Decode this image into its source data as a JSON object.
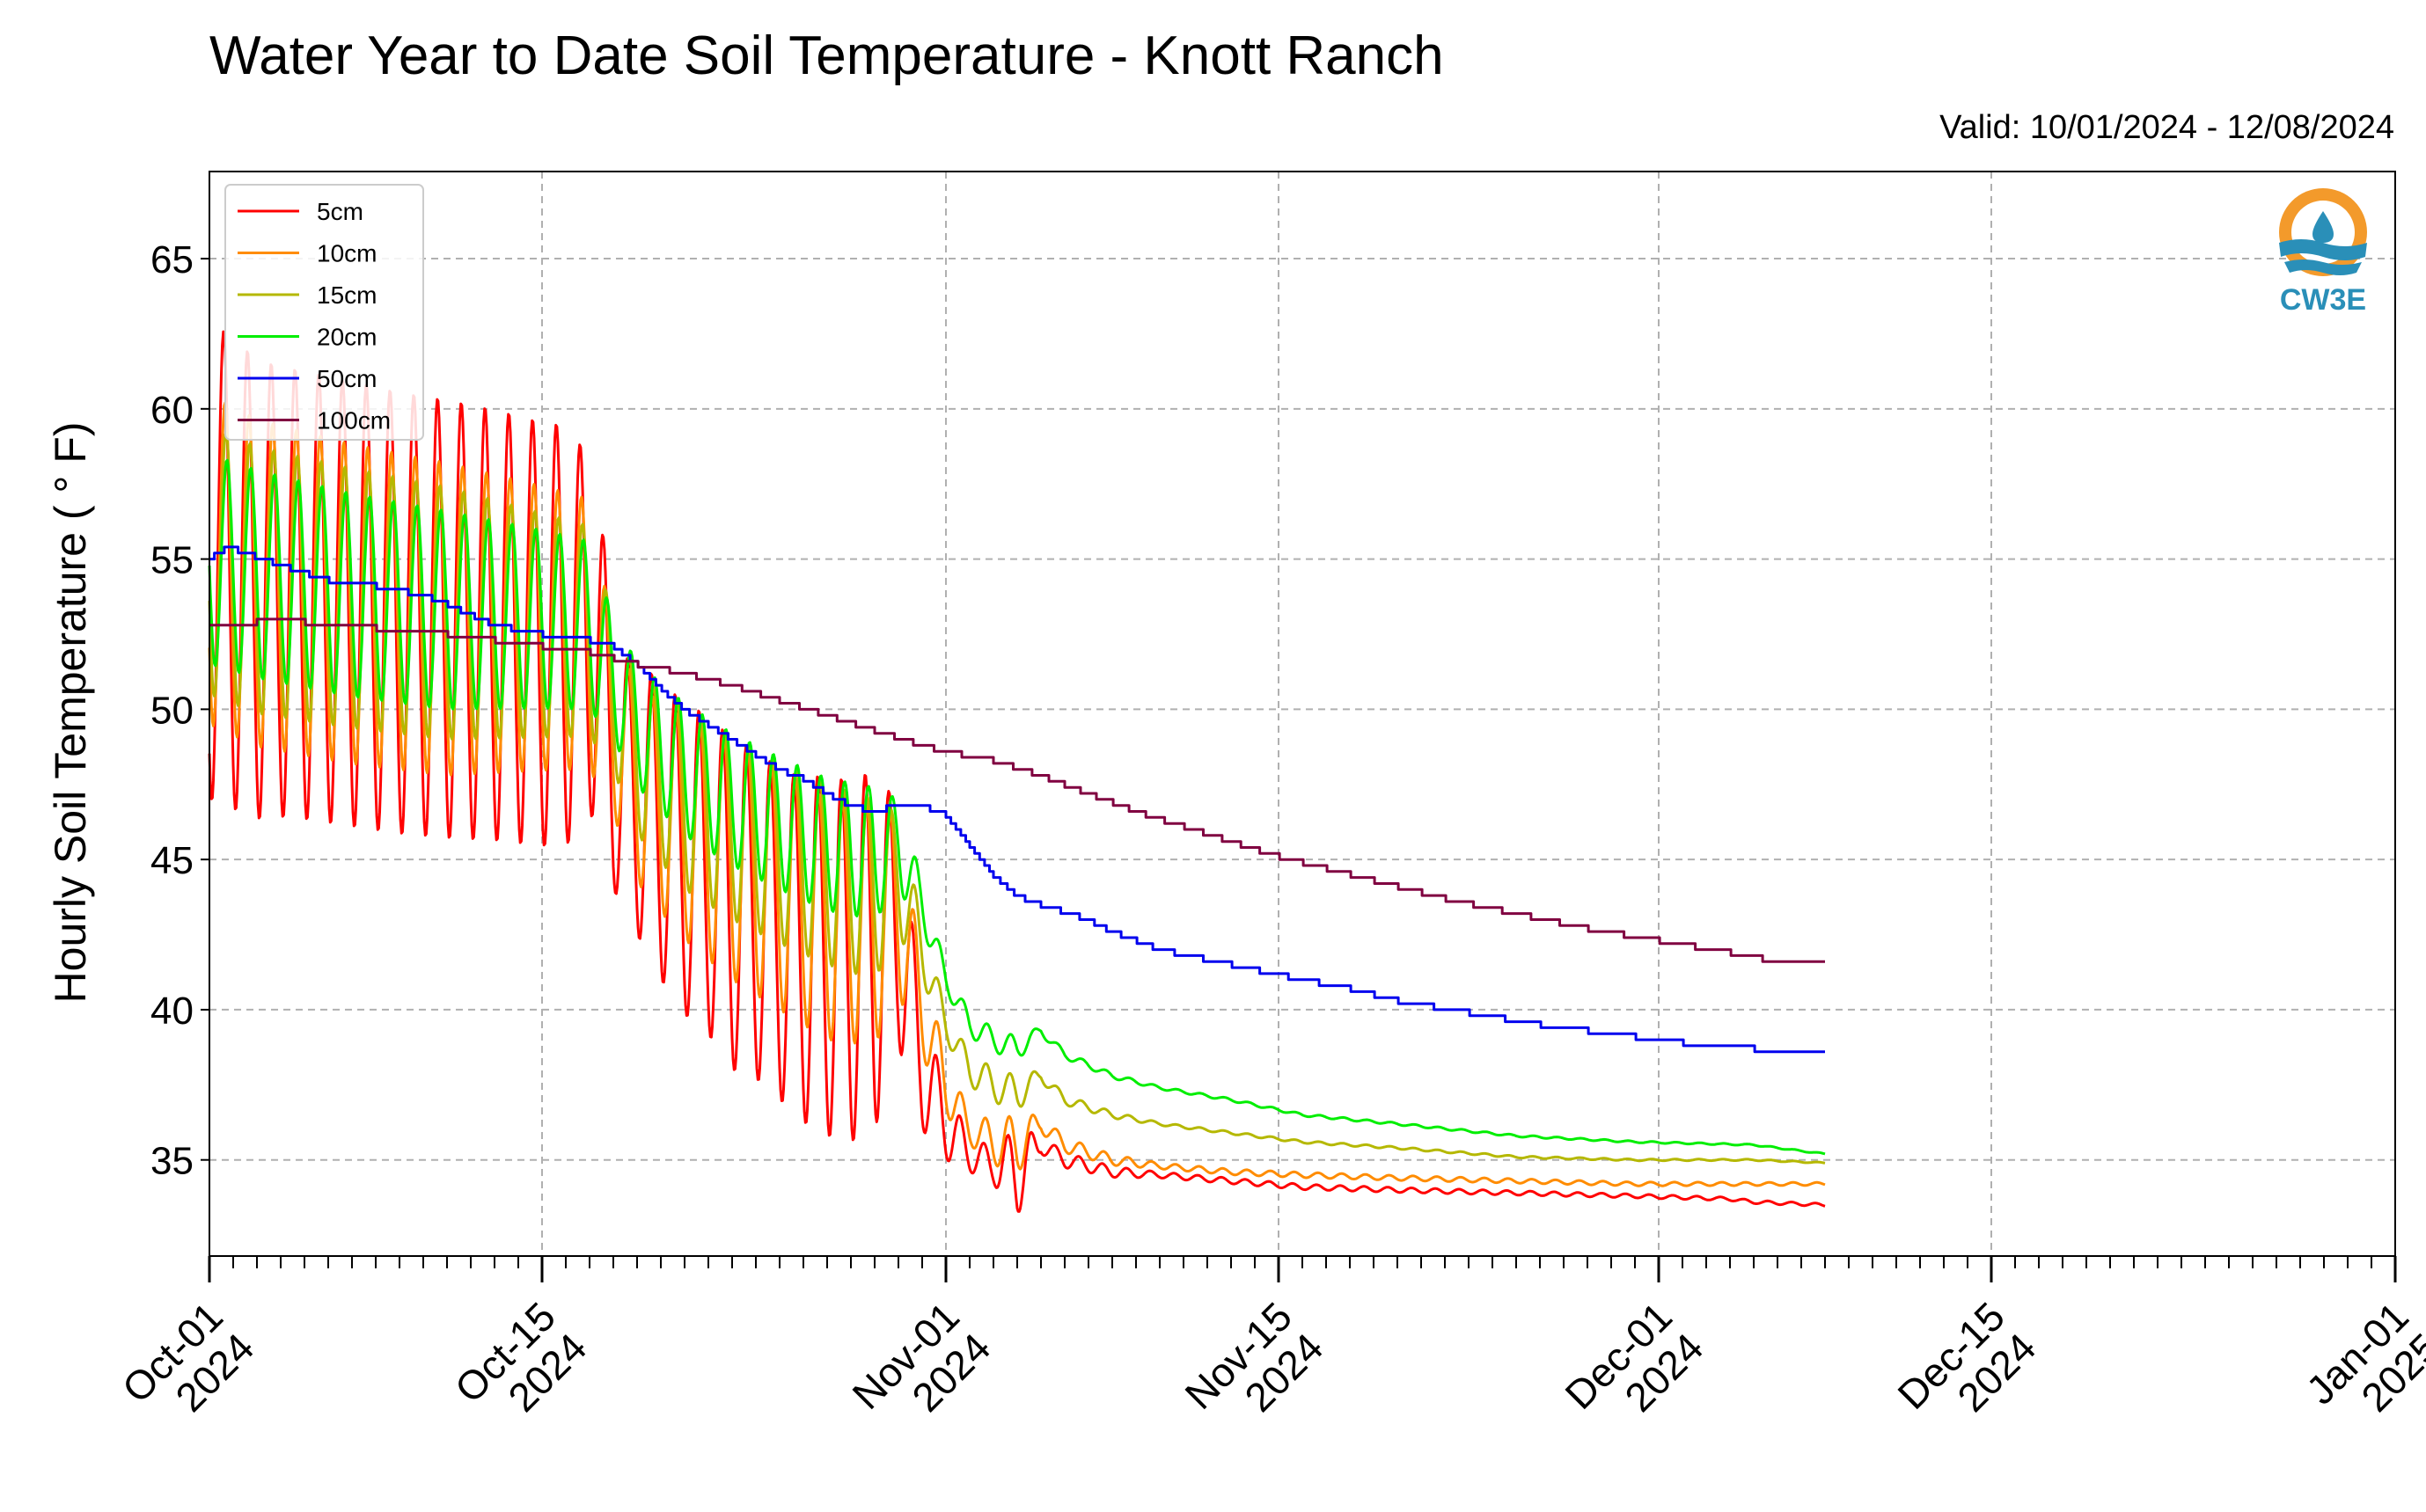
{
  "title": "Water Year to Date Soil Temperature - Knott Ranch",
  "valid": "Valid: 10/01/2024 - 12/08/2024",
  "logo": {
    "name": "CW3E",
    "colors": {
      "orange": "#f39a2b",
      "blue": "#2a8fb8"
    }
  },
  "chart_data": {
    "type": "line",
    "title": "Water Year to Date Soil Temperature - Knott Ranch",
    "ylabel": "Hourly Soil Temperature ( ° F)",
    "xlabel": "",
    "ylim": [
      31.8,
      67.9
    ],
    "xlim": [
      "2024-10-01",
      "2025-01-01"
    ],
    "yticks": [
      35,
      40,
      45,
      50,
      55,
      60,
      65
    ],
    "xticks": [
      {
        "date": "2024-10-01",
        "line1": "Oct-01",
        "line2": "2024"
      },
      {
        "date": "2024-10-15",
        "line1": "Oct-15",
        "line2": "2024"
      },
      {
        "date": "2024-11-01",
        "line1": "Nov-01",
        "line2": "2024"
      },
      {
        "date": "2024-11-15",
        "line1": "Nov-15",
        "line2": "2024"
      },
      {
        "date": "2024-12-01",
        "line1": "Dec-01",
        "line2": "2024"
      },
      {
        "date": "2024-12-15",
        "line1": "Dec-15",
        "line2": "2024"
      },
      {
        "date": "2025-01-01",
        "line1": "Jan-01",
        "line2": "2025"
      }
    ],
    "grid": true,
    "legend_position": "top-left",
    "series": [
      {
        "name": "5cm",
        "color": "#ff0000",
        "base": [
          [
            0,
            55
          ],
          [
            2,
            54
          ],
          [
            4,
            53.8
          ],
          [
            6,
            53.5
          ],
          [
            8,
            53.2
          ],
          [
            10,
            53
          ],
          [
            12,
            52.8
          ],
          [
            14,
            52.5
          ],
          [
            16,
            52.4
          ],
          [
            16.5,
            51.5
          ],
          [
            17,
            48
          ],
          [
            18,
            47
          ],
          [
            19,
            46
          ],
          [
            20,
            45
          ],
          [
            21,
            44.5
          ],
          [
            22,
            43.5
          ],
          [
            23,
            43.2
          ],
          [
            24,
            42.5
          ],
          [
            25,
            42
          ],
          [
            26,
            41.8
          ],
          [
            27,
            41.6
          ],
          [
            28,
            42
          ],
          [
            29,
            42.8
          ],
          [
            30,
            38
          ],
          [
            31,
            36.2
          ],
          [
            32,
            35.2
          ],
          [
            33,
            34.8
          ],
          [
            34,
            34.6
          ],
          [
            35,
            35.5
          ],
          [
            36,
            35
          ],
          [
            37,
            34.8
          ],
          [
            38,
            34.6
          ],
          [
            40,
            34.5
          ],
          [
            43,
            34.3
          ],
          [
            46,
            34.1
          ],
          [
            50,
            34
          ],
          [
            55,
            33.9
          ],
          [
            60,
            33.8
          ],
          [
            64,
            33.7
          ],
          [
            65,
            33.6
          ],
          [
            68,
            33.5
          ]
        ],
        "amp": [
          [
            0,
            8
          ],
          [
            3,
            7.5
          ],
          [
            10,
            7.3
          ],
          [
            15,
            7
          ],
          [
            16,
            6
          ],
          [
            17,
            4
          ],
          [
            19,
            5
          ],
          [
            22,
            5.5
          ],
          [
            24,
            5.5
          ],
          [
            26,
            6
          ],
          [
            27,
            6
          ],
          [
            28,
            6
          ],
          [
            29,
            4
          ],
          [
            30,
            2
          ],
          [
            31,
            1.2
          ],
          [
            32,
            0.6
          ],
          [
            33,
            0.6
          ],
          [
            34,
            1.5
          ],
          [
            35,
            0.3
          ],
          [
            40,
            0.1
          ],
          [
            68,
            0.05
          ]
        ],
        "phase": 0.0
      },
      {
        "name": "10cm",
        "color": "#ff8c00",
        "base": [
          [
            0,
            55
          ],
          [
            2,
            54.2
          ],
          [
            6,
            53.5
          ],
          [
            10,
            53
          ],
          [
            14,
            52.7
          ],
          [
            16,
            52.5
          ],
          [
            17,
            49.5
          ],
          [
            18,
            47.5
          ],
          [
            20,
            46
          ],
          [
            22,
            45
          ],
          [
            24,
            44
          ],
          [
            26,
            43
          ],
          [
            28,
            42.8
          ],
          [
            29,
            43.5
          ],
          [
            30,
            40
          ],
          [
            31,
            37.5
          ],
          [
            32,
            36
          ],
          [
            33,
            35.6
          ],
          [
            34,
            35.5
          ],
          [
            35,
            36.2
          ],
          [
            36,
            35.5
          ],
          [
            38,
            35
          ],
          [
            40,
            34.8
          ],
          [
            43,
            34.6
          ],
          [
            46,
            34.5
          ],
          [
            50,
            34.4
          ],
          [
            55,
            34.3
          ],
          [
            60,
            34.2
          ],
          [
            65,
            34.2
          ],
          [
            68,
            34.2
          ]
        ],
        "amp": [
          [
            0,
            5.5
          ],
          [
            10,
            5.2
          ],
          [
            16,
            4.5
          ],
          [
            17,
            3
          ],
          [
            19,
            3.5
          ],
          [
            22,
            4
          ],
          [
            26,
            4
          ],
          [
            28,
            4
          ],
          [
            29,
            3
          ],
          [
            30,
            1.5
          ],
          [
            31,
            1
          ],
          [
            32,
            0.5
          ],
          [
            34,
            1
          ],
          [
            35,
            0.3
          ],
          [
            40,
            0.1
          ],
          [
            68,
            0.05
          ]
        ],
        "phase": 0.06
      },
      {
        "name": "15cm",
        "color": "#b5b800",
        "base": [
          [
            0,
            55
          ],
          [
            2,
            54.3
          ],
          [
            6,
            53.7
          ],
          [
            10,
            53.2
          ],
          [
            14,
            52.8
          ],
          [
            16,
            52.6
          ],
          [
            17,
            50.5
          ],
          [
            18,
            48.5
          ],
          [
            20,
            47
          ],
          [
            22,
            46
          ],
          [
            24,
            45.2
          ],
          [
            26,
            44.5
          ],
          [
            28,
            44
          ],
          [
            29,
            44.5
          ],
          [
            30,
            42
          ],
          [
            31,
            39.5
          ],
          [
            32,
            38
          ],
          [
            33,
            37.5
          ],
          [
            34,
            37.2
          ],
          [
            35,
            37.8
          ],
          [
            36,
            37
          ],
          [
            38,
            36.5
          ],
          [
            40,
            36.2
          ],
          [
            43,
            35.9
          ],
          [
            46,
            35.6
          ],
          [
            50,
            35.4
          ],
          [
            55,
            35.1
          ],
          [
            60,
            35
          ],
          [
            65,
            35
          ],
          [
            68,
            34.9
          ]
        ],
        "amp": [
          [
            0,
            4.5
          ],
          [
            10,
            4.2
          ],
          [
            16,
            3.5
          ],
          [
            17,
            2.5
          ],
          [
            20,
            3
          ],
          [
            26,
            3
          ],
          [
            28,
            3
          ],
          [
            29,
            2
          ],
          [
            30,
            1
          ],
          [
            31,
            0.5
          ],
          [
            34,
            0.6
          ],
          [
            35,
            0.2
          ],
          [
            40,
            0.05
          ],
          [
            68,
            0.02
          ]
        ],
        "phase": 0.1
      },
      {
        "name": "20cm",
        "color": "#00ee00",
        "base": [
          [
            0,
            55
          ],
          [
            2,
            54.5
          ],
          [
            6,
            53.8
          ],
          [
            10,
            53.3
          ],
          [
            14,
            53
          ],
          [
            16,
            52.8
          ],
          [
            17,
            51
          ],
          [
            18,
            49.5
          ],
          [
            20,
            48
          ],
          [
            22,
            47
          ],
          [
            24,
            46.2
          ],
          [
            26,
            45.5
          ],
          [
            28,
            45.2
          ],
          [
            29,
            45.5
          ],
          [
            30,
            43.5
          ],
          [
            31,
            41
          ],
          [
            32,
            39.5
          ],
          [
            33,
            39
          ],
          [
            34,
            38.7
          ],
          [
            35,
            39.3
          ],
          [
            36,
            38.5
          ],
          [
            38,
            37.8
          ],
          [
            40,
            37.4
          ],
          [
            43,
            37
          ],
          [
            46,
            36.5
          ],
          [
            50,
            36.2
          ],
          [
            55,
            35.8
          ],
          [
            60,
            35.6
          ],
          [
            65,
            35.5
          ],
          [
            68,
            35.2
          ]
        ],
        "amp": [
          [
            0,
            3.5
          ],
          [
            10,
            3.3
          ],
          [
            16,
            2.8
          ],
          [
            17,
            2
          ],
          [
            20,
            2.2
          ],
          [
            26,
            2.2
          ],
          [
            28,
            2.2
          ],
          [
            29,
            1.5
          ],
          [
            30,
            0.8
          ],
          [
            31,
            0.4
          ],
          [
            34,
            0.4
          ],
          [
            35,
            0.15
          ],
          [
            40,
            0.05
          ],
          [
            68,
            0.02
          ]
        ],
        "phase": 0.14
      },
      {
        "name": "50cm",
        "color": "#0000ee",
        "base": [
          [
            0,
            55
          ],
          [
            0.8,
            55.4
          ],
          [
            3,
            54.8
          ],
          [
            5,
            54.3
          ],
          [
            6,
            54.2
          ],
          [
            7,
            54.1
          ],
          [
            9,
            53.8
          ],
          [
            10,
            53.5
          ],
          [
            12,
            52.8
          ],
          [
            14,
            52.5
          ],
          [
            16,
            52.3
          ],
          [
            17,
            52.1
          ],
          [
            18,
            51.5
          ],
          [
            19,
            50.7
          ],
          [
            20,
            50
          ],
          [
            21,
            49.5
          ],
          [
            22,
            49
          ],
          [
            23,
            48.5
          ],
          [
            24,
            48
          ],
          [
            25,
            47.7
          ],
          [
            26,
            47.2
          ],
          [
            27,
            46.8
          ],
          [
            28,
            46.6
          ],
          [
            29,
            46.8
          ],
          [
            30,
            46.8
          ],
          [
            31,
            46.5
          ],
          [
            32,
            45.5
          ],
          [
            33,
            44.5
          ],
          [
            34,
            43.8
          ],
          [
            35,
            43.5
          ],
          [
            37,
            43
          ],
          [
            38,
            42.6
          ],
          [
            40,
            42
          ],
          [
            43,
            41.5
          ],
          [
            46,
            41
          ],
          [
            48,
            40.7
          ],
          [
            50,
            40.3
          ],
          [
            53,
            39.9
          ],
          [
            56,
            39.5
          ],
          [
            60,
            39.1
          ],
          [
            63,
            38.8
          ],
          [
            65,
            38.7
          ],
          [
            66,
            38.5
          ],
          [
            68,
            38.5
          ]
        ],
        "amp": [
          [
            0,
            0
          ],
          [
            68,
            0
          ]
        ],
        "phase": 0.0
      },
      {
        "name": "100cm",
        "color": "#800040",
        "base": [
          [
            0,
            52.7
          ],
          [
            1,
            52.7
          ],
          [
            2,
            52.9
          ],
          [
            4,
            52.9
          ],
          [
            5,
            52.8
          ],
          [
            7,
            52.7
          ],
          [
            9,
            52.6
          ],
          [
            10,
            52.5
          ],
          [
            12,
            52.3
          ],
          [
            14,
            52.1
          ],
          [
            16,
            51.9
          ],
          [
            18,
            51.5
          ],
          [
            20,
            51.2
          ],
          [
            22,
            50.8
          ],
          [
            24,
            50.3
          ],
          [
            26,
            49.8
          ],
          [
            28,
            49.3
          ],
          [
            30,
            48.8
          ],
          [
            31,
            48.6
          ],
          [
            33,
            48.3
          ],
          [
            35,
            47.8
          ],
          [
            37,
            47.2
          ],
          [
            39,
            46.6
          ],
          [
            41,
            46.1
          ],
          [
            43,
            45.6
          ],
          [
            45,
            45.1
          ],
          [
            47,
            44.7
          ],
          [
            49,
            44.3
          ],
          [
            52,
            43.7
          ],
          [
            55,
            43.2
          ],
          [
            58,
            42.7
          ],
          [
            61,
            42.3
          ],
          [
            64,
            41.9
          ],
          [
            66,
            41.6
          ],
          [
            68,
            41.5
          ]
        ],
        "amp": [
          [
            0,
            0
          ],
          [
            68,
            0
          ]
        ],
        "phase": 0.0
      }
    ],
    "data_note": "x in days since 2024-10-01; hourly values 2024-10-01 to 2024-12-08"
  }
}
